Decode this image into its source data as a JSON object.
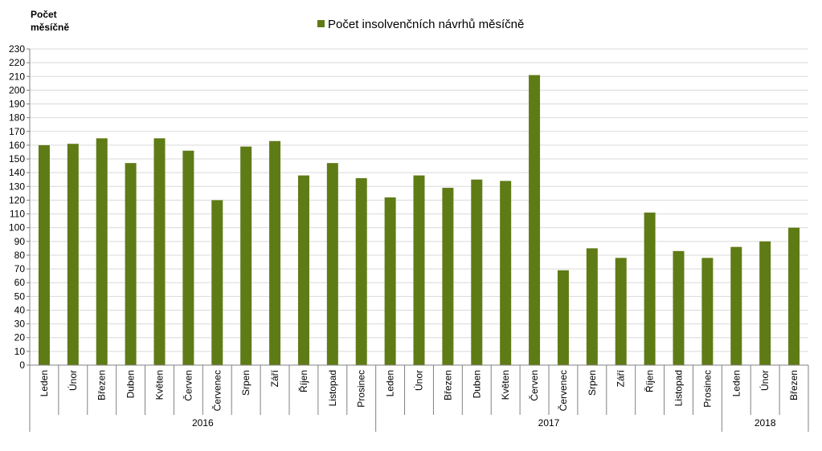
{
  "chart_data": {
    "type": "bar",
    "ylabel_lines": [
      "Počet",
      "měsíčně"
    ],
    "legend": "Počet insolvenčních návrhů měsíčně",
    "series_color": "#5f7b16",
    "ylim": [
      0,
      230
    ],
    "ytick_step": 10,
    "grid": true,
    "legend_position": "top",
    "categories": [
      "Leden",
      "Únor",
      "Březen",
      "Duben",
      "Květen",
      "Červen",
      "Červenec",
      "Srpen",
      "Září",
      "Říjen",
      "Listopad",
      "Prosinec",
      "Leden",
      "Únor",
      "Březen",
      "Duben",
      "Květen",
      "Červen",
      "Červenec",
      "Srpen",
      "Září",
      "Říjen",
      "Listopad",
      "Prosinec",
      "Leden",
      "Únor",
      "Březen"
    ],
    "values": [
      160,
      161,
      165,
      147,
      165,
      156,
      120,
      159,
      163,
      138,
      147,
      136,
      122,
      138,
      129,
      135,
      134,
      211,
      69,
      85,
      78,
      111,
      83,
      78,
      86,
      90,
      100
    ],
    "years": [
      {
        "label": "2016",
        "start": 0,
        "end": 11
      },
      {
        "label": "2017",
        "start": 12,
        "end": 23
      },
      {
        "label": "2018",
        "start": 24,
        "end": 26
      }
    ]
  }
}
